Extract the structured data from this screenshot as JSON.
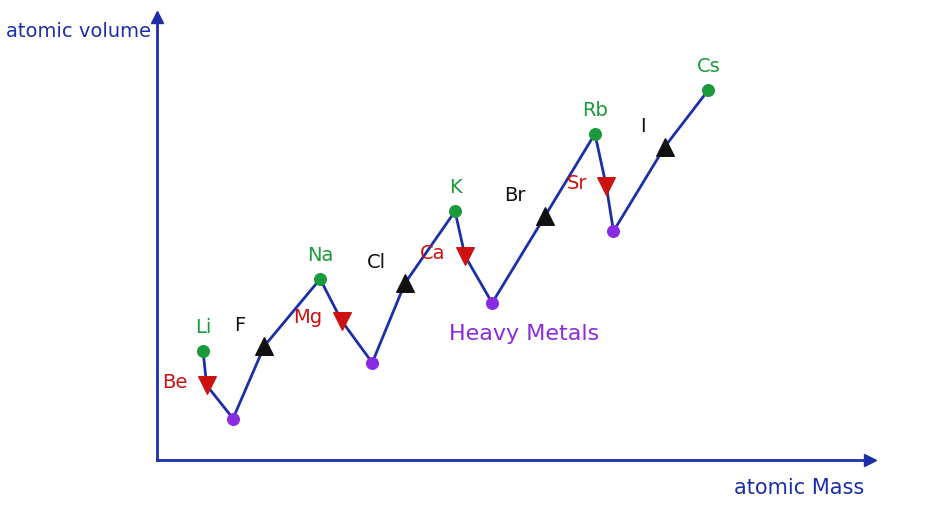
{
  "chart_data": {
    "type": "line",
    "x_label": "atomic Mass",
    "y_label": "atomic volume",
    "xlim": [
      0,
      100
    ],
    "ylim": [
      0,
      100
    ],
    "xticks": [],
    "yticks": [],
    "tick_labels": false,
    "grid": false,
    "series": [
      {
        "type": "line",
        "color": "#1c2fa8",
        "line_style": "solid",
        "x": [
          6.5,
          7.0,
          10.7,
          15.1,
          22.9,
          25.9,
          30.2,
          34.8,
          41.8,
          43.2,
          47.0,
          54.4,
          61.4,
          63.0,
          64.0,
          71.2,
          77.3
        ],
        "values": [
          24.7,
          16.9,
          9.4,
          25.8,
          40.9,
          31.5,
          22.0,
          40.0,
          56.2,
          46.1,
          35.5,
          55.1,
          73.7,
          61.8,
          51.7,
          70.8,
          83.6
        ]
      },
      {
        "type": "scatter",
        "marker": "o",
        "color": "#1a9a3a",
        "x": [
          6.5,
          22.9,
          41.8,
          61.4,
          77.3
        ],
        "values": [
          24.7,
          40.9,
          56.2,
          73.7,
          83.6
        ],
        "labels": [
          "Li",
          "Na",
          "K",
          "Rb",
          "Cs"
        ]
      },
      {
        "type": "scatter",
        "marker": "v",
        "color": "#cc1111",
        "x": [
          7.0,
          25.9,
          43.2,
          63.0
        ],
        "values": [
          16.9,
          31.5,
          46.1,
          61.8
        ],
        "labels": [
          "Be",
          "Mg",
          "Ca",
          "Sr"
        ]
      },
      {
        "type": "scatter",
        "marker": "^",
        "color": "#111111",
        "x": [
          15.1,
          34.8,
          54.4,
          71.2
        ],
        "values": [
          25.8,
          40.0,
          55.1,
          70.8
        ],
        "labels": [
          "F",
          "Cl",
          "Br",
          "I"
        ]
      },
      {
        "type": "scatter",
        "marker": "o",
        "color": "#8a2be2",
        "x": [
          10.7,
          30.2,
          47.0,
          64.0
        ],
        "values": [
          9.4,
          22.0,
          35.5,
          51.7
        ]
      }
    ],
    "annotations": [
      {
        "text": "Heavy Metals",
        "x": 41.0,
        "y": 28.5,
        "color": "#8a2be2"
      }
    ]
  }
}
